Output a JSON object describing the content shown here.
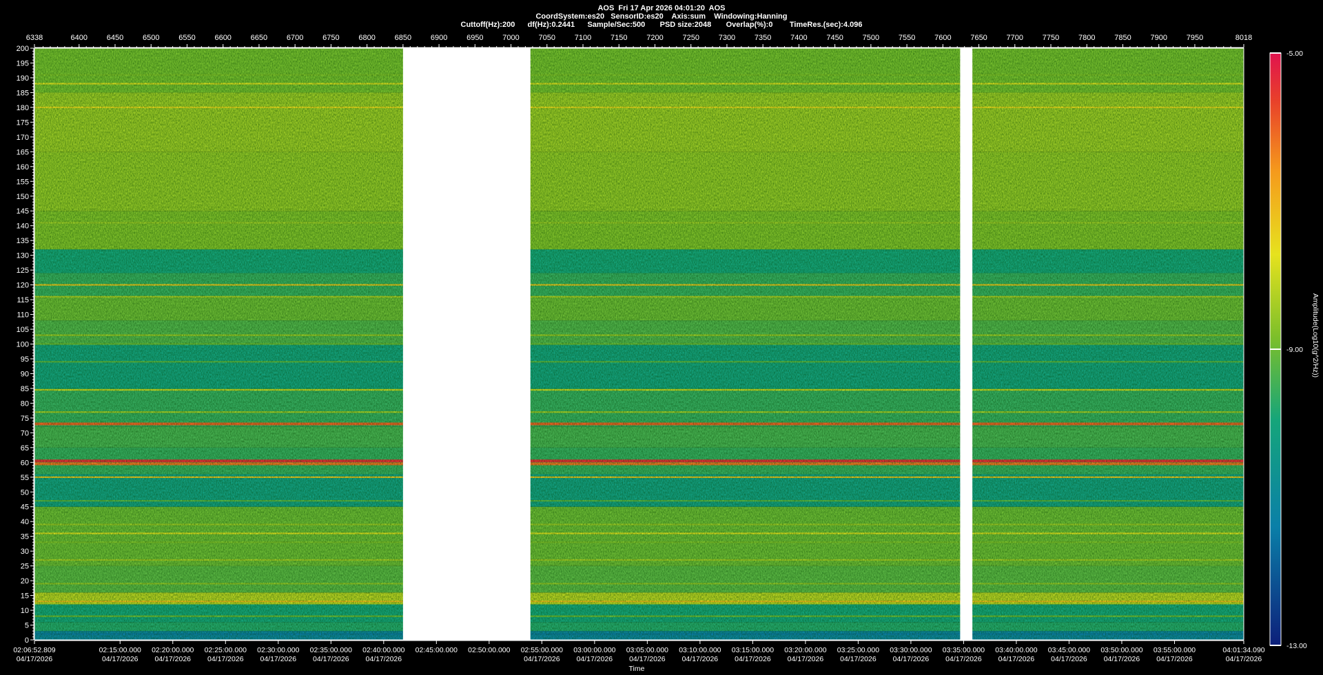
{
  "header": {
    "title": "AOS  Fri 17 Apr 2026 04:01:20  AOS",
    "line2": "CoordSystem:es20   SensorID:es20    Axis:sum    Windowing:Hanning",
    "line3": "Cuttoff(Hz):200      df(Hz):0.2441      Sample/Sec:500       PSD size:2048       Overlap(%):0        TimeRes.(sec):4.096"
  },
  "chart_data": {
    "type": "heatmap",
    "title": "AOS  Fri 17 Apr 2026 04:01:20  AOS",
    "xlabel": "Time",
    "ylabel": "",
    "colorbar_label": "Amplitude(Log10(g^2/Hz))",
    "colorbar_ticks": [
      "-5.00",
      "-9.00",
      "-13.00"
    ],
    "colorbar_range": [
      -13,
      -5
    ],
    "ylim": [
      0,
      200
    ],
    "y_ticks": [
      0,
      5,
      10,
      15,
      20,
      25,
      30,
      35,
      40,
      45,
      50,
      55,
      60,
      65,
      70,
      75,
      80,
      85,
      90,
      95,
      100,
      105,
      110,
      115,
      120,
      125,
      130,
      135,
      140,
      145,
      150,
      155,
      160,
      165,
      170,
      175,
      180,
      185,
      190,
      195,
      200
    ],
    "top_axis": {
      "range": [
        6338,
        8018
      ],
      "ticks": [
        6338,
        6400,
        6450,
        6500,
        6550,
        6600,
        6650,
        6700,
        6750,
        6800,
        6850,
        6900,
        6950,
        7000,
        7050,
        7100,
        7150,
        7200,
        7250,
        7300,
        7350,
        7400,
        7450,
        7500,
        7550,
        7600,
        7650,
        7700,
        7750,
        7800,
        7850,
        7900,
        7950,
        8018
      ]
    },
    "time_ticks": [
      {
        "time": "02:06:52.809",
        "date": "04/17/2026"
      },
      {
        "time": "02:15:00.000",
        "date": "04/17/2026"
      },
      {
        "time": "02:20:00.000",
        "date": "04/17/2026"
      },
      {
        "time": "02:25:00.000",
        "date": "04/17/2026"
      },
      {
        "time": "02:30:00.000",
        "date": "04/17/2026"
      },
      {
        "time": "02:35:00.000",
        "date": "04/17/2026"
      },
      {
        "time": "02:40:00.000",
        "date": "04/17/2026"
      },
      {
        "time": "02:45:00.000",
        "date": ""
      },
      {
        "time": "02:50:00.000",
        "date": ""
      },
      {
        "time": "02:55:00.000",
        "date": "04/17/2026"
      },
      {
        "time": "03:00:00.000",
        "date": "04/17/2026"
      },
      {
        "time": "03:05:00.000",
        "date": "04/17/2026"
      },
      {
        "time": "03:10:00.000",
        "date": "04/17/2026"
      },
      {
        "time": "03:15:00.000",
        "date": "04/17/2026"
      },
      {
        "time": "03:20:00.000",
        "date": "04/17/2026"
      },
      {
        "time": "03:25:00.000",
        "date": "04/17/2026"
      },
      {
        "time": "03:30:00.000",
        "date": "04/17/2026"
      },
      {
        "time": "03:35:00.000",
        "date": "04/17/2026"
      },
      {
        "time": "03:40:00.000",
        "date": "04/17/2026"
      },
      {
        "time": "03:45:00.000",
        "date": "04/17/2026"
      },
      {
        "time": "03:50:00.000",
        "date": "04/17/2026"
      },
      {
        "time": "03:55:00.000",
        "date": "04/17/2026"
      },
      {
        "time": "04:01:34.090",
        "date": "04/17/2026"
      }
    ],
    "data_gaps": [
      [
        6850,
        7027
      ],
      [
        7624,
        7641
      ]
    ],
    "spectral_lines_hz": [
      {
        "hz": 2,
        "level": -11.5
      },
      {
        "hz": 8,
        "level": -9.0
      },
      {
        "hz": 13,
        "level": -7.2
      },
      {
        "hz": 19,
        "level": -8.6
      },
      {
        "hz": 27,
        "level": -8.4
      },
      {
        "hz": 33,
        "level": -8.8
      },
      {
        "hz": 36,
        "level": -7.8
      },
      {
        "hz": 39,
        "level": -8.5
      },
      {
        "hz": 47,
        "level": -9.2
      },
      {
        "hz": 55,
        "level": -7.3
      },
      {
        "hz": 59.5,
        "level": -6.2
      },
      {
        "hz": 60.5,
        "level": -5.4
      },
      {
        "hz": 73,
        "level": -6.0
      },
      {
        "hz": 77,
        "level": -8.4
      },
      {
        "hz": 84.5,
        "level": -8.0
      },
      {
        "hz": 94,
        "level": -9.2
      },
      {
        "hz": 100,
        "level": -9.0
      },
      {
        "hz": 103,
        "level": -8.5
      },
      {
        "hz": 116,
        "level": -8.3
      },
      {
        "hz": 120,
        "level": -7.3
      },
      {
        "hz": 141,
        "level": -8.5
      },
      {
        "hz": 146,
        "level": -8.6
      },
      {
        "hz": 164,
        "level": -8.6
      },
      {
        "hz": 180,
        "level": -7.6
      },
      {
        "hz": 188,
        "level": -7.8
      },
      {
        "hz": 191,
        "level": -8.8
      },
      {
        "hz": 195,
        "level": -8.9
      }
    ],
    "grid": false,
    "legend": "colorbar-right"
  }
}
